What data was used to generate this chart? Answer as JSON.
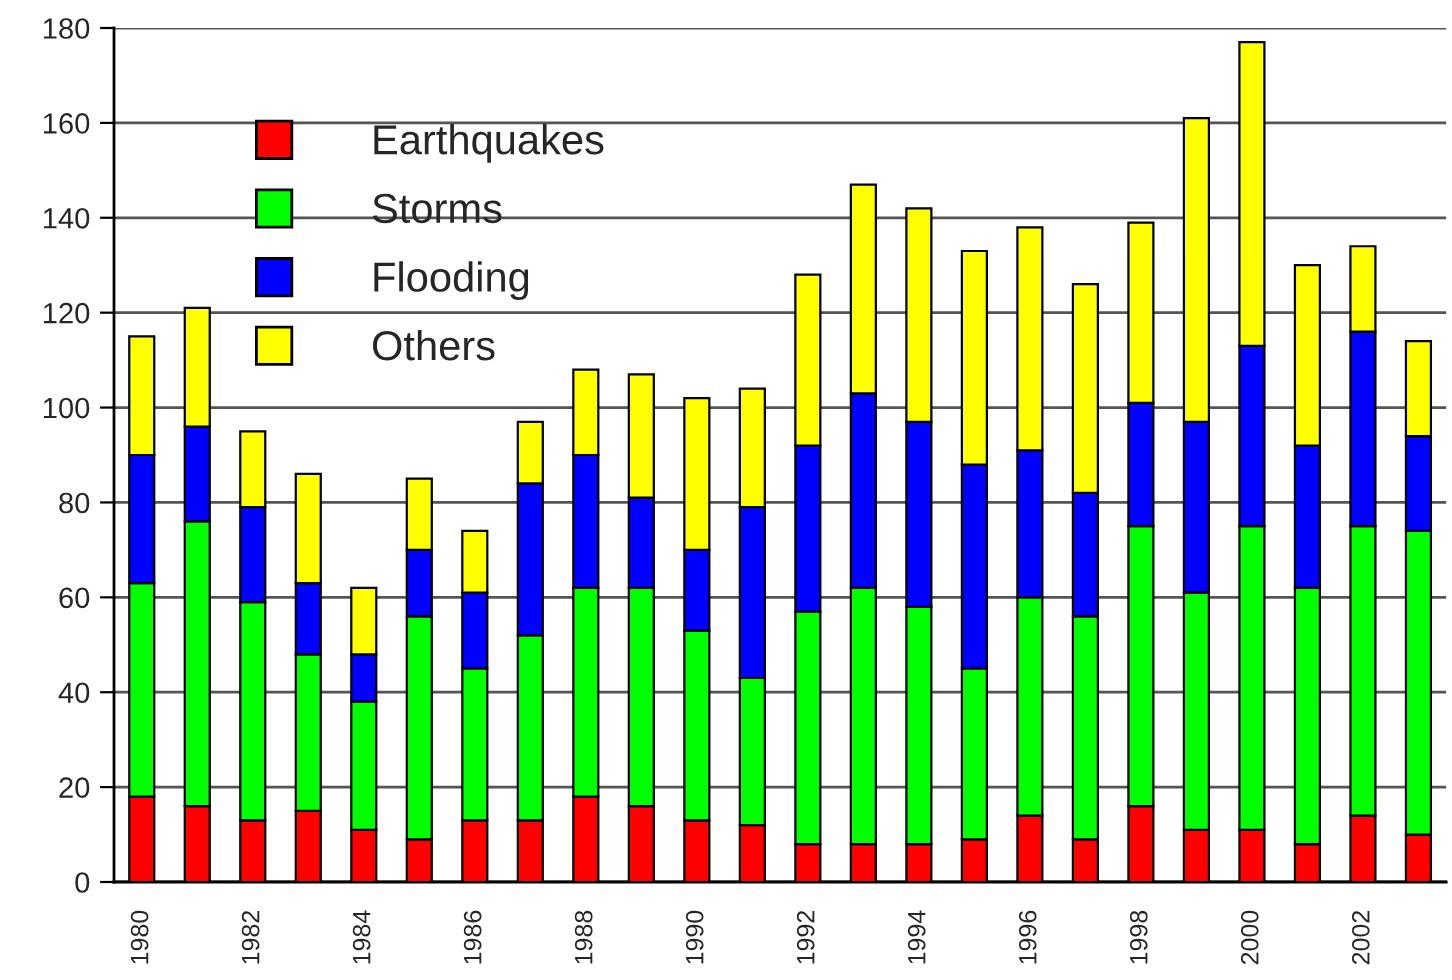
{
  "chart_data": {
    "type": "bar",
    "stacked": true,
    "categories": [
      "1980",
      null,
      "1982",
      null,
      "1984",
      null,
      "1986",
      null,
      "1988",
      null,
      "1990",
      null,
      "1992",
      null,
      "1994",
      null,
      "1996",
      null,
      "1998",
      null,
      "2000",
      null,
      "2002",
      null
    ],
    "series": [
      {
        "name": "Earthquakes",
        "color": "#ff0000",
        "values": [
          18,
          16,
          13,
          15,
          11,
          9,
          13,
          13,
          18,
          16,
          13,
          12,
          8,
          8,
          8,
          9,
          14,
          9,
          16,
          11,
          11,
          8,
          14,
          10
        ]
      },
      {
        "name": "Storms",
        "color": "#00ff00",
        "values": [
          45,
          60,
          46,
          33,
          27,
          47,
          32,
          39,
          44,
          46,
          40,
          31,
          49,
          54,
          50,
          36,
          46,
          47,
          59,
          50,
          64,
          54,
          61,
          64
        ]
      },
      {
        "name": "Flooding",
        "color": "#0000ff",
        "values": [
          27,
          20,
          20,
          15,
          10,
          14,
          16,
          32,
          28,
          19,
          17,
          36,
          35,
          41,
          39,
          43,
          31,
          26,
          26,
          36,
          38,
          30,
          41,
          20
        ]
      },
      {
        "name": "Others",
        "color": "#ffff00",
        "values": [
          25,
          25,
          16,
          23,
          14,
          15,
          13,
          13,
          18,
          26,
          32,
          25,
          36,
          44,
          45,
          45,
          47,
          44,
          38,
          64,
          64,
          38,
          18,
          20
        ]
      }
    ],
    "ylim": [
      0,
      180
    ],
    "yticks": [
      0,
      20,
      40,
      60,
      80,
      100,
      120,
      140,
      160,
      180
    ],
    "grid": "y",
    "legend": "top left"
  }
}
